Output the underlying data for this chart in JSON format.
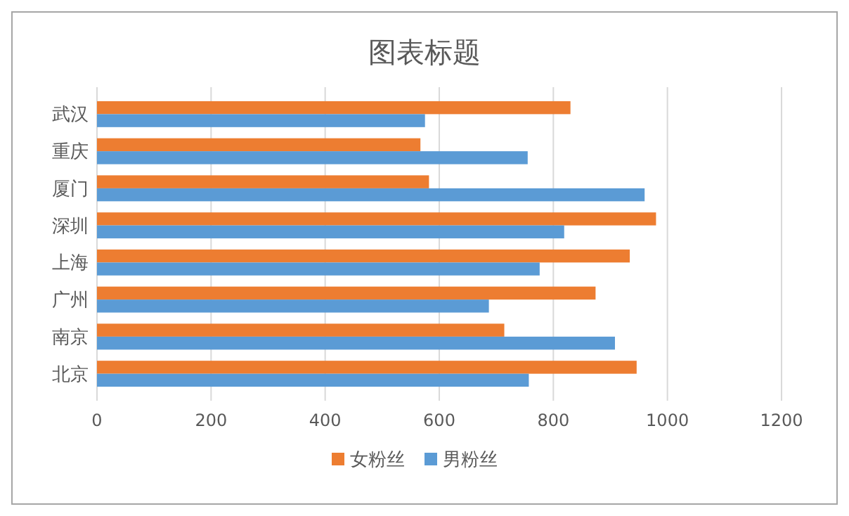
{
  "chart_data": {
    "type": "bar",
    "orientation": "horizontal",
    "title": "图表标题",
    "categories": [
      "武汉",
      "重庆",
      "厦门",
      "深圳",
      "上海",
      "广州",
      "南京",
      "北京"
    ],
    "series": [
      {
        "name": "女粉丝",
        "color": "#ed7d31",
        "values": [
          830,
          567,
          582,
          980,
          934,
          874,
          714,
          946
        ]
      },
      {
        "name": "男粉丝",
        "color": "#5b9bd5",
        "values": [
          575,
          755,
          960,
          819,
          776,
          687,
          908,
          757
        ]
      }
    ],
    "xlim": [
      0,
      1200
    ],
    "xticks": [
      0,
      200,
      400,
      600,
      800,
      1000,
      1200
    ],
    "grid": "x",
    "legend": "bottom"
  }
}
